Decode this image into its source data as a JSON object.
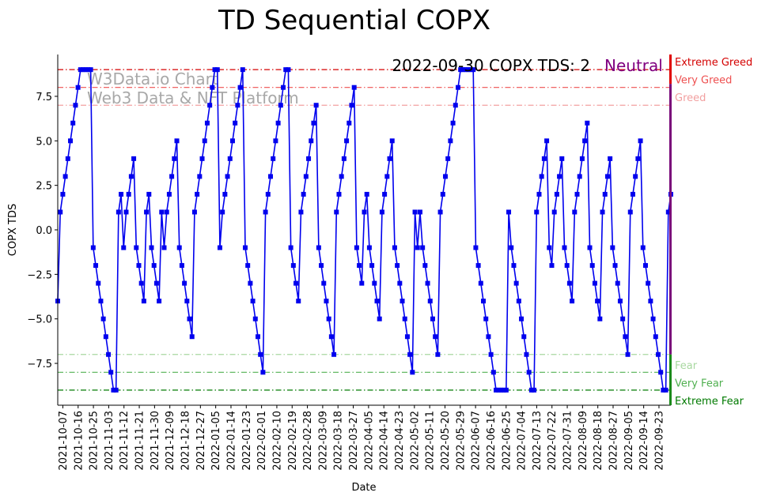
{
  "chart_data": {
    "type": "line",
    "title": "TD Sequential COPX",
    "xlabel": "Date",
    "ylabel": "COPX TDS",
    "ylim": [
      -9.85,
      9.85
    ],
    "yticks": [
      -7.5,
      -5.0,
      -2.5,
      0.0,
      2.5,
      5.0,
      7.5
    ],
    "ytick_labels": [
      "−7.5",
      "−5.0",
      "−2.5",
      "0.0",
      "2.5",
      "5.0",
      "7.5"
    ],
    "start_date": "2021-10-04",
    "end_date": "2022-09-30",
    "xtick_labels": [
      "2021-10-07",
      "2021-10-16",
      "2021-10-25",
      "2021-11-03",
      "2021-11-12",
      "2021-11-21",
      "2021-11-30",
      "2021-12-09",
      "2021-12-18",
      "2021-12-27",
      "2022-01-05",
      "2022-01-14",
      "2022-01-23",
      "2022-02-01",
      "2022-02-10",
      "2022-02-19",
      "2022-02-28",
      "2022-03-09",
      "2022-03-18",
      "2022-03-27",
      "2022-04-05",
      "2022-04-14",
      "2022-04-23",
      "2022-05-02",
      "2022-05-11",
      "2022-05-20",
      "2022-05-29",
      "2022-06-07",
      "2022-06-16",
      "2022-06-25",
      "2022-07-04",
      "2022-07-13",
      "2022-07-22",
      "2022-07-31",
      "2022-08-09",
      "2022-08-18",
      "2022-08-27",
      "2022-09-05",
      "2022-09-14",
      "2022-09-23"
    ],
    "series": [
      {
        "name": "COPX TDS",
        "color": "#0000ee",
        "values": [
          -4,
          1,
          2,
          3,
          4,
          5,
          6,
          7,
          8,
          9,
          9,
          9,
          9,
          9,
          -1,
          -2,
          -3,
          -4,
          -5,
          -6,
          -7,
          -8,
          -9,
          -9,
          1,
          2,
          -1,
          1,
          2,
          3,
          4,
          -1,
          -2,
          -3,
          -4,
          1,
          2,
          -1,
          -2,
          -3,
          -4,
          1,
          -1,
          1,
          2,
          3,
          4,
          5,
          -1,
          -2,
          -3,
          -4,
          -5,
          -6,
          1,
          2,
          3,
          4,
          5,
          6,
          7,
          8,
          9,
          9,
          -1,
          1,
          2,
          3,
          4,
          5,
          6,
          7,
          8,
          9,
          -1,
          -2,
          -3,
          -4,
          -5,
          -6,
          -7,
          -8,
          1,
          2,
          3,
          4,
          5,
          6,
          7,
          8,
          9,
          9,
          -1,
          -2,
          -3,
          -4,
          1,
          2,
          3,
          4,
          5,
          6,
          7,
          -1,
          -2,
          -3,
          -4,
          -5,
          -6,
          -7,
          1,
          2,
          3,
          4,
          5,
          6,
          7,
          8,
          -1,
          -2,
          -3,
          1,
          2,
          -1,
          -2,
          -3,
          -4,
          -5,
          1,
          2,
          3,
          4,
          5,
          -1,
          -2,
          -3,
          -4,
          -5,
          -6,
          -7,
          -8,
          1,
          -1,
          1,
          -1,
          -2,
          -3,
          -4,
          -5,
          -6,
          -7,
          1,
          2,
          3,
          4,
          5,
          6,
          7,
          8,
          9,
          9,
          9,
          9,
          9,
          9,
          -1,
          -2,
          -3,
          -4,
          -5,
          -6,
          -7,
          -8,
          -9,
          -9,
          -9,
          -9,
          -9,
          1,
          -1,
          -2,
          -3,
          -4,
          -5,
          -6,
          -7,
          -8,
          -9,
          -9,
          1,
          2,
          3,
          4,
          5,
          -1,
          -2,
          1,
          2,
          3,
          4,
          -1,
          -2,
          -3,
          -4,
          1,
          2,
          3,
          4,
          5,
          6,
          -1,
          -2,
          -3,
          -4,
          -5,
          1,
          2,
          3,
          4,
          -1,
          -2,
          -3,
          -4,
          -5,
          -6,
          -7,
          1,
          2,
          3,
          4,
          5,
          -1,
          -2,
          -3,
          -4,
          -5,
          -6,
          -7,
          -8,
          -9,
          -9,
          1,
          2
        ]
      }
    ],
    "reference_lines": [
      {
        "name": "Extreme Greed",
        "value": 9,
        "color": "#d40000"
      },
      {
        "name": "Very Greed",
        "value": 8,
        "color": "#ee5050"
      },
      {
        "name": "Greed",
        "value": 7,
        "color": "#f2a0a0"
      },
      {
        "name": "Fear",
        "value": -7,
        "color": "#a8d8a0"
      },
      {
        "name": "Very Fear",
        "value": -8,
        "color": "#50b050"
      },
      {
        "name": "Extreme Fear",
        "value": -9,
        "color": "#007a00"
      }
    ],
    "annotation": {
      "text": "2022-09-30 COPX TDS: 2",
      "status": "Neutral",
      "status_color": "#800080"
    },
    "watermark": [
      "W3Data.io Chart",
      "Web3 Data & NFT Platform"
    ]
  }
}
